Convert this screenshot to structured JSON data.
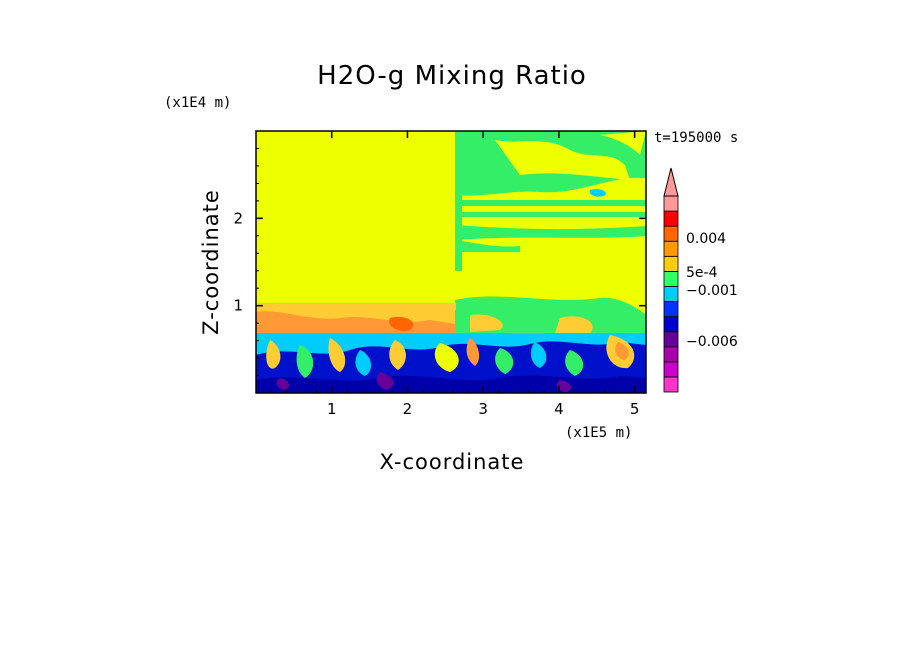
{
  "chart_data": {
    "type": "heatmap",
    "title": "H2O-g Mixing Ratio",
    "xlabel": "X-coordinate",
    "ylabel": "Z-coordinate",
    "x_scale_label": "(x1E5 m)",
    "y_scale_label": "(x1E4 m)",
    "time_label": "t=195000 s",
    "x_range": [
      0,
      5.15
    ],
    "y_range": [
      0,
      3.0
    ],
    "x_ticks": [
      1,
      2,
      3,
      4,
      5
    ],
    "x_tick_labels": [
      "1",
      "2",
      "3",
      "4",
      "5"
    ],
    "y_ticks": [
      1,
      2
    ],
    "y_tick_labels": [
      "1",
      "2"
    ],
    "colorbar_labels": [
      {
        "value": 0.004,
        "text": "0.004"
      },
      {
        "value": 0.0005,
        "text": "5e-4"
      },
      {
        "value": -0.001,
        "text": "−0.001"
      },
      {
        "value": -0.006,
        "text": "−0.006"
      }
    ],
    "colorbar_colors": [
      "#ff33cc",
      "#cc00cc",
      "#aa00aa",
      "#660099",
      "#0000cc",
      "#0033ff",
      "#00ccff",
      "#33ff66",
      "#ffcc00",
      "#ff9900",
      "#ff6600",
      "#ff0000",
      "#ff9999"
    ],
    "regions": [
      {
        "name": "upper-left-uniform",
        "x": [
          0,
          2.55
        ],
        "z": [
          1.05,
          3.0
        ],
        "color": "#eeff00"
      },
      {
        "name": "upper-right-banded",
        "x": [
          2.55,
          5.15
        ],
        "z": [
          0.9,
          3.0
        ],
        "color": "#33ee66"
      },
      {
        "name": "orange-band",
        "x": [
          0,
          2.55
        ],
        "z": [
          0.7,
          1.05
        ],
        "color": "#ffcc33"
      },
      {
        "name": "turbulent-lower",
        "x": [
          0,
          5.15
        ],
        "z": [
          0,
          0.7
        ],
        "color": "#0011cc"
      }
    ]
  }
}
